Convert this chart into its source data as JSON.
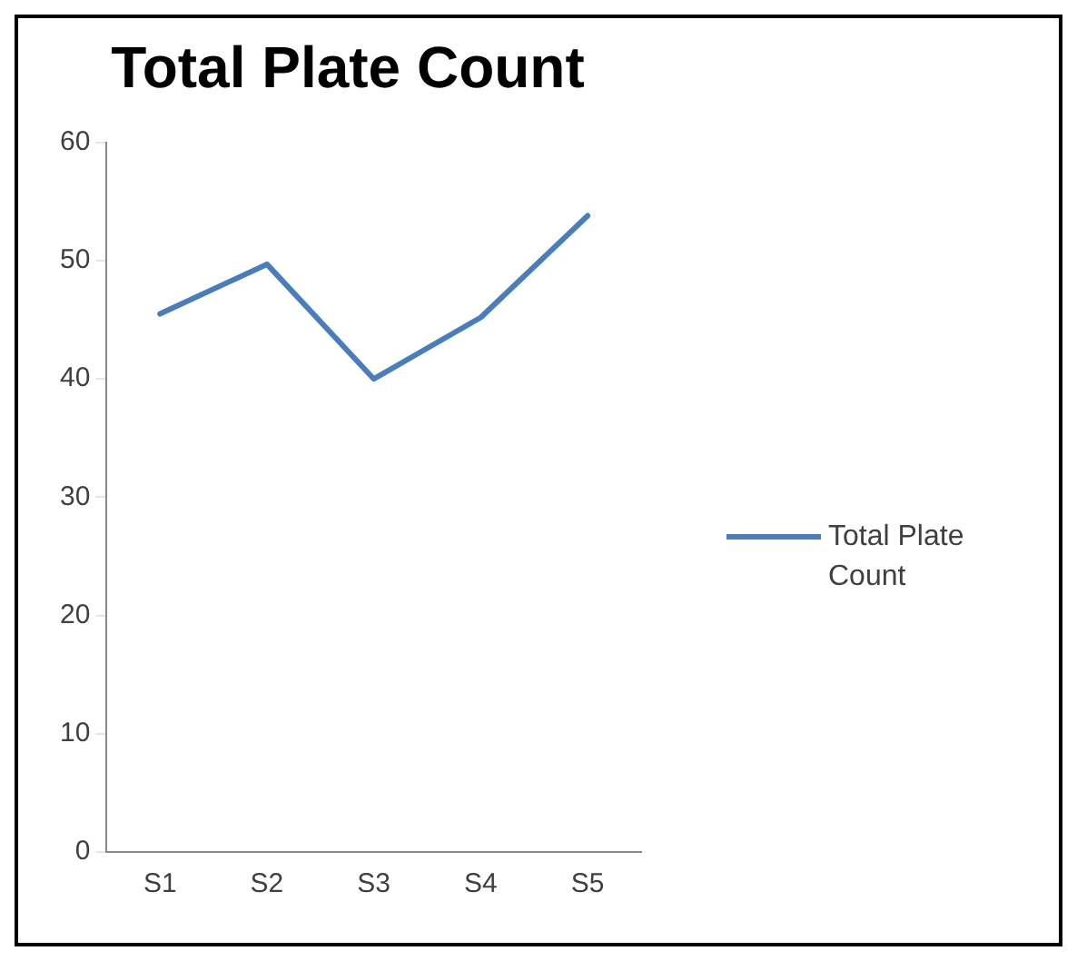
{
  "chart_data": {
    "type": "line",
    "title": "Total Plate Count",
    "categories": [
      "S1",
      "S2",
      "S3",
      "S4",
      "S5"
    ],
    "series": [
      {
        "name": "Total Plate Count",
        "color": "#4a7ebb",
        "values": [
          45.5,
          49.7,
          40.0,
          45.2,
          53.8
        ]
      }
    ],
    "ylim": [
      0,
      60
    ],
    "yticks": [
      0,
      10,
      20,
      30,
      40,
      50,
      60
    ],
    "grid": false,
    "legend": "right",
    "marker": "none",
    "line_style": "solid"
  }
}
